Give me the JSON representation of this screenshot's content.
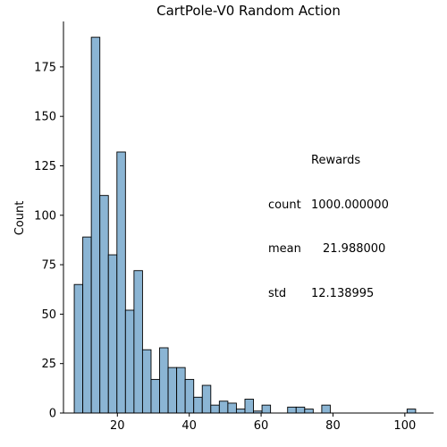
{
  "chart_data": {
    "type": "bar",
    "title": "CartPole-V0 Random Action",
    "xlabel": "",
    "ylabel": "Count",
    "xlim": [
      5,
      108
    ],
    "ylim": [
      0,
      198
    ],
    "x_ticks": [
      20,
      40,
      60,
      80,
      100
    ],
    "y_ticks": [
      0,
      25,
      50,
      75,
      100,
      125,
      150,
      175
    ],
    "bin_width": 2.375,
    "bins": [
      {
        "x0": 8.0,
        "count": 65
      },
      {
        "x0": 10.375,
        "count": 89
      },
      {
        "x0": 12.75,
        "count": 190
      },
      {
        "x0": 15.125,
        "count": 110
      },
      {
        "x0": 17.5,
        "count": 80
      },
      {
        "x0": 19.875,
        "count": 132
      },
      {
        "x0": 22.25,
        "count": 52
      },
      {
        "x0": 24.625,
        "count": 72
      },
      {
        "x0": 27.0,
        "count": 32
      },
      {
        "x0": 29.375,
        "count": 17
      },
      {
        "x0": 31.75,
        "count": 33
      },
      {
        "x0": 34.125,
        "count": 23
      },
      {
        "x0": 36.5,
        "count": 23
      },
      {
        "x0": 38.875,
        "count": 17
      },
      {
        "x0": 41.25,
        "count": 8
      },
      {
        "x0": 43.625,
        "count": 14
      },
      {
        "x0": 46.0,
        "count": 4
      },
      {
        "x0": 48.375,
        "count": 6
      },
      {
        "x0": 50.75,
        "count": 5
      },
      {
        "x0": 53.125,
        "count": 2
      },
      {
        "x0": 55.5,
        "count": 7
      },
      {
        "x0": 57.875,
        "count": 1
      },
      {
        "x0": 60.25,
        "count": 4
      },
      {
        "x0": 62.625,
        "count": 0
      },
      {
        "x0": 65.0,
        "count": 0
      },
      {
        "x0": 67.375,
        "count": 3
      },
      {
        "x0": 69.75,
        "count": 3
      },
      {
        "x0": 72.125,
        "count": 2
      },
      {
        "x0": 74.5,
        "count": 0
      },
      {
        "x0": 76.875,
        "count": 4
      },
      {
        "x0": 79.25,
        "count": 0
      },
      {
        "x0": 81.625,
        "count": 0
      },
      {
        "x0": 84.0,
        "count": 0
      },
      {
        "x0": 86.375,
        "count": 0
      },
      {
        "x0": 88.75,
        "count": 0
      },
      {
        "x0": 91.125,
        "count": 0
      },
      {
        "x0": 93.5,
        "count": 0
      },
      {
        "x0": 95.875,
        "count": 0
      },
      {
        "x0": 98.25,
        "count": 0
      },
      {
        "x0": 100.625,
        "count": 2
      }
    ],
    "bar_fill": "#8bb5d4",
    "bar_stroke": "#000000",
    "grid": false
  },
  "stats": {
    "header": "Rewards",
    "rows": [
      {
        "key": "count",
        "value": "1000.000000"
      },
      {
        "key": "mean",
        "value": "21.988000"
      },
      {
        "key": "std",
        "value": "12.138995"
      }
    ]
  }
}
